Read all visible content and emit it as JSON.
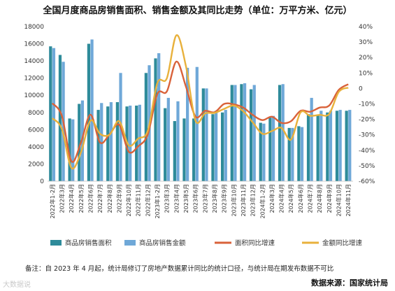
{
  "chart_data": {
    "type": "bar-line",
    "title": "全国月度商品房销售面积、销售金额及其同比走势（单位：万平方米、亿元）",
    "left_axis": {
      "ylim": [
        0,
        18000
      ],
      "ticks": [
        0,
        2000,
        4000,
        6000,
        8000,
        10000,
        12000,
        14000,
        16000,
        18000
      ]
    },
    "right_axis": {
      "ylim": [
        -60,
        40
      ],
      "ticks": [
        "-60%",
        "-50%",
        "-40%",
        "-30%",
        "-20%",
        "-10%",
        "0",
        "10%",
        "20%",
        "30%",
        "40%"
      ]
    },
    "categories": [
      "2022年1-2月",
      "2022年3月",
      "2022年4月",
      "2022年5月",
      "2022年6月",
      "2022年7月",
      "2022年8月",
      "2022年9月",
      "2022年10月",
      "2022年11月",
      "2022年12月",
      "2023年1-2月",
      "2023年3月",
      "2023年4月",
      "2023年5月",
      "2023年6月",
      "2023年7月",
      "2023年8月",
      "2023年9月",
      "2023年10月",
      "2023年11月",
      "2023年12月",
      "2024年1-2月",
      "2024年3月",
      "2024年4月",
      "2024年5月",
      "2024年6月",
      "2024年7月",
      "2024年8月",
      "2024年9月",
      "2024年10月",
      "2024年11月"
    ],
    "series": [
      {
        "name": "商品房销售面积",
        "kind": "bar",
        "axis": "left",
        "color": "#2e8b9a",
        "values": [
          15700,
          14700,
          7300,
          9000,
          16000,
          8300,
          8700,
          9200,
          8700,
          8800,
          12600,
          14300,
          8500,
          7000,
          7300,
          7300,
          10800,
          7800,
          8000,
          11200,
          11300,
          10700,
          6800,
          7400,
          11200,
          6200,
          6400,
          7800,
          7700,
          8000,
          8200,
          8200
        ]
      },
      {
        "name": "商品房销售金额",
        "kind": "bar",
        "axis": "left",
        "color": "#6fa8d8",
        "values": [
          15500,
          13900,
          7200,
          9400,
          16500,
          9100,
          9200,
          12600,
          8800,
          8900,
          13500,
          14900,
          9700,
          9300,
          13200,
          13300,
          10800,
          8200,
          8300,
          11200,
          11400,
          11200,
          6700,
          7600,
          11300,
          6200,
          6300,
          9700,
          8200,
          8200,
          8300,
          8300
        ]
      },
      {
        "name": "面积同比增速",
        "kind": "line",
        "axis": "right",
        "color": "#d9623a",
        "values": [
          -9.6,
          -17.7,
          -47.1,
          -35.0,
          -17.0,
          -35.0,
          -29.7,
          -23.5,
          -40.9,
          -37.4,
          -29.7,
          -3.6,
          -1.9,
          17.4,
          1.1,
          -18.2,
          -14.5,
          -15.4,
          -10.0,
          -10.3,
          -12.4,
          -17.2,
          -20.5,
          -18.3,
          -22.3,
          -21.2,
          -14.5,
          -15.1,
          -12.4,
          -11.1,
          -1.0,
          2.7
        ]
      },
      {
        "name": "金额同比增速",
        "kind": "line",
        "axis": "right",
        "color": "#e8b13c",
        "values": [
          -19.3,
          -26.2,
          -51.4,
          -41.4,
          -20.8,
          -29.4,
          -29.9,
          -21.2,
          -36.8,
          -32.4,
          -27.4,
          3.5,
          6.6,
          34.4,
          14.3,
          -20.9,
          -16.1,
          -15.8,
          -13.2,
          -11.1,
          -14.8,
          -22.0,
          -29.3,
          -27.6,
          -25.5,
          -33.1,
          -15.5,
          -17.7,
          -17.1,
          -16.5,
          -2.3,
          0.5
        ]
      }
    ],
    "legend_position": "bottom",
    "grid": false
  },
  "note": "备注：自 2023 年 4 月起，统计局修订了房地产数据累计同比的统计口径，与统计局在期发布数据不可比",
  "source": "数据来源：国家统计局",
  "watermark": "大数据说"
}
